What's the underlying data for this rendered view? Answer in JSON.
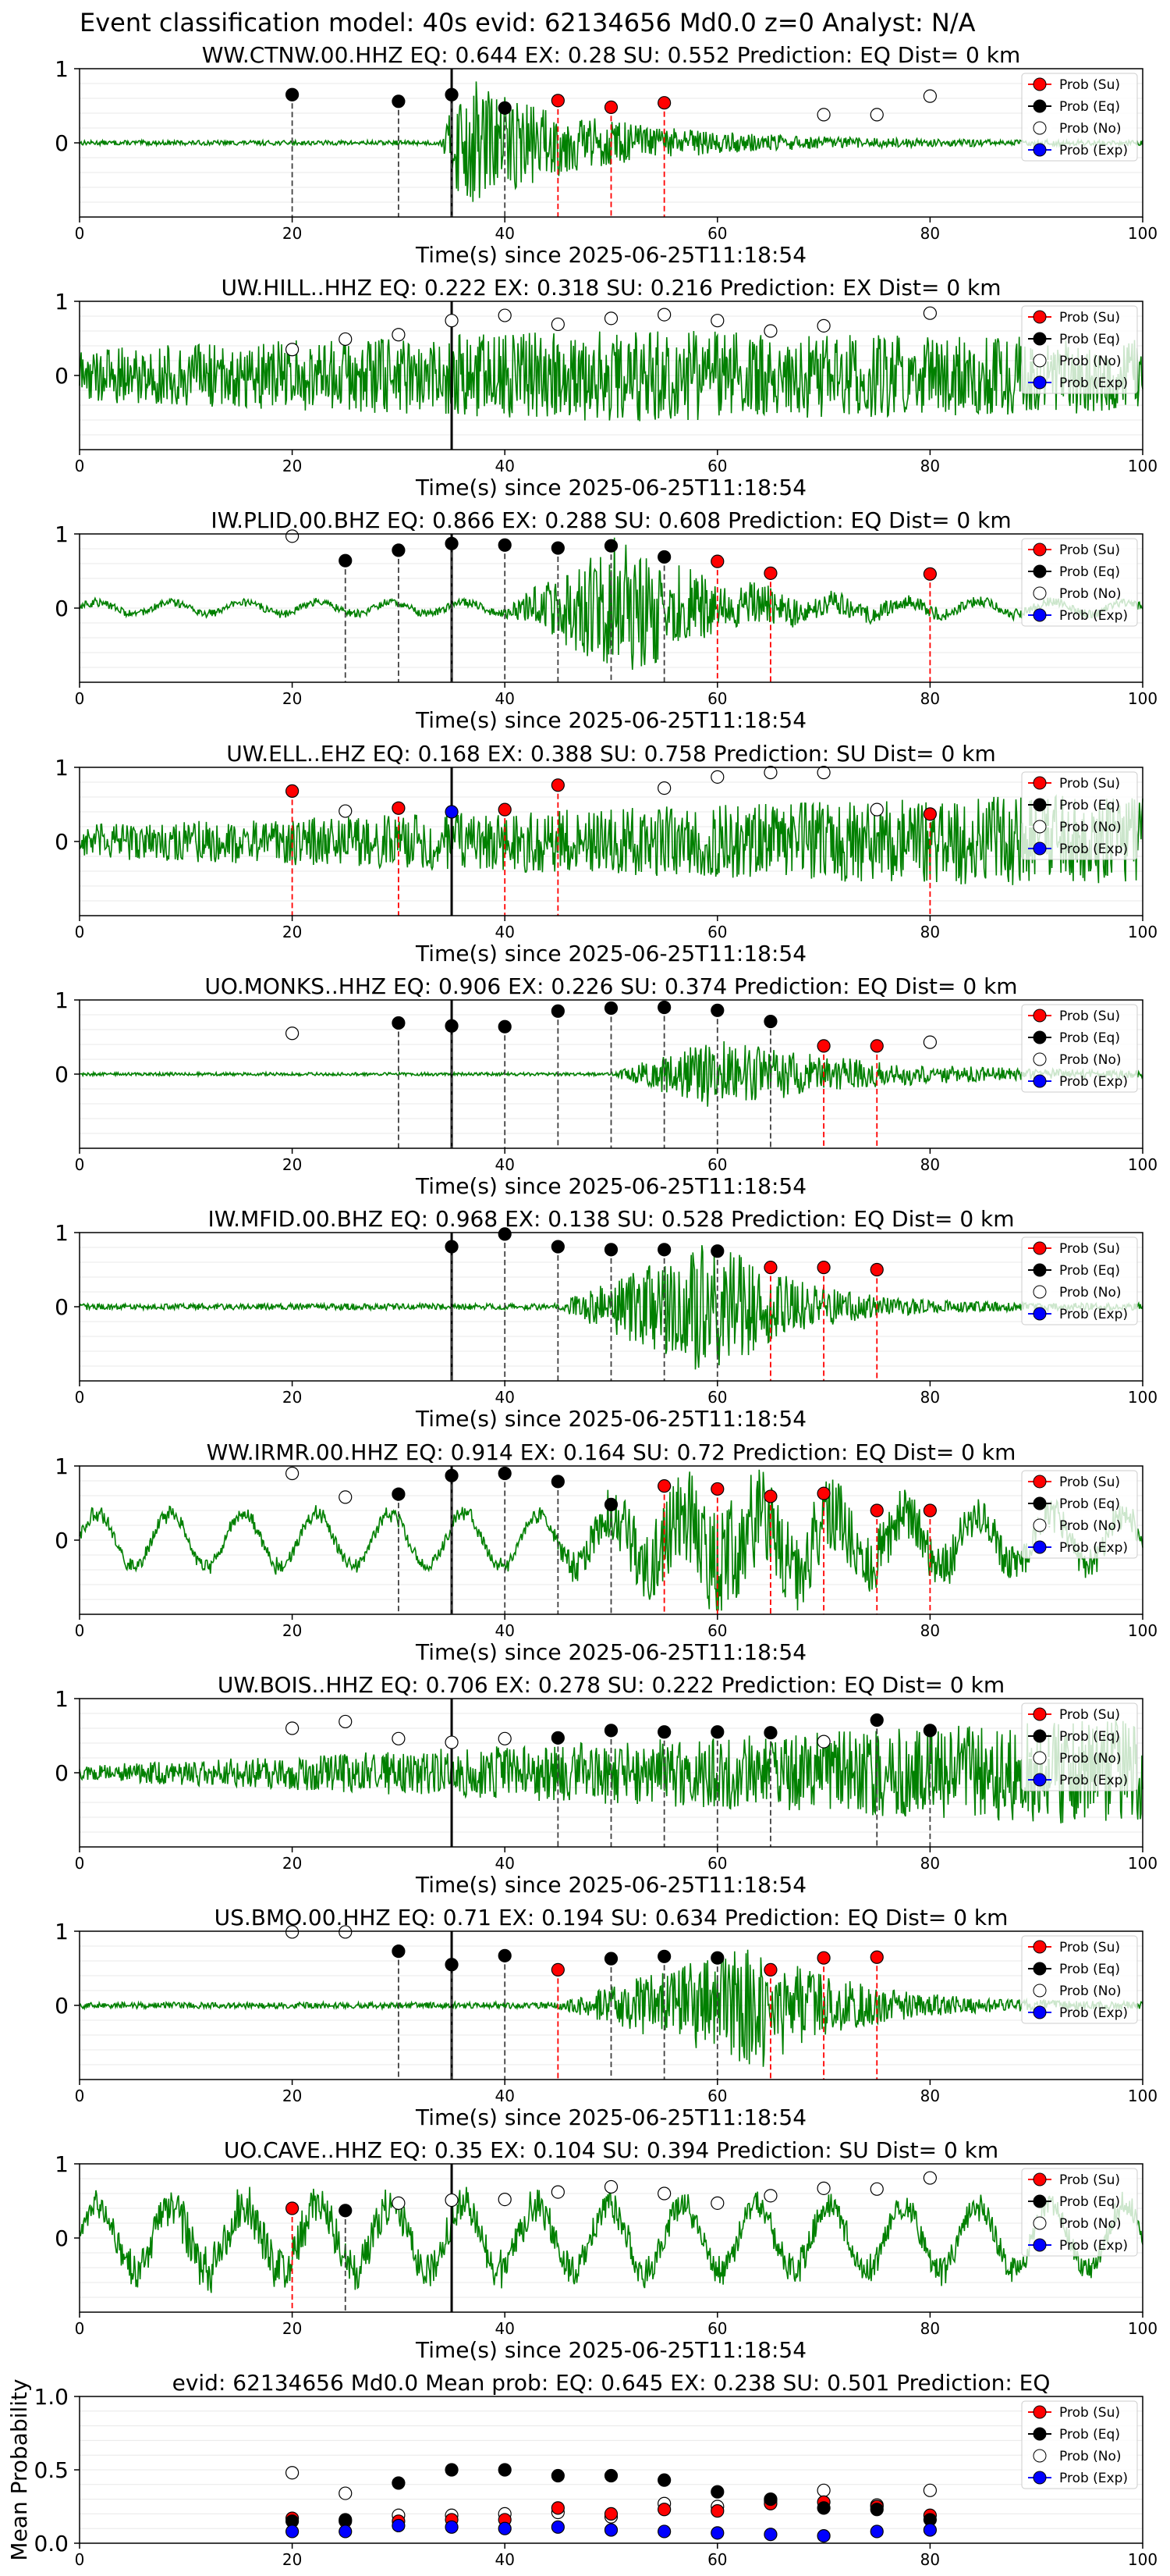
{
  "figure": {
    "suptitle": "Event classification model: 40s evid: 62134656 Md0.0 z=0 Analyst: N/A"
  },
  "legend_labels": [
    "Prob (Su)",
    "Prob (Eq)",
    "Prob (No)",
    "Prob (Exp)"
  ],
  "colors": {
    "waveform": "#008000",
    "su": "#ff0000",
    "eq": "#000000",
    "no": "#ffffff",
    "exp": "#0000ff",
    "eq_line": "#404040",
    "su_line": "#ff0000",
    "origin_line": "#000000"
  },
  "chart_data": [
    {
      "type": "line",
      "title": "WW.CTNW.00.HHZ   EQ: 0.644  EX: 0.28  SU: 0.552   Prediction: EQ    Dist= 0 km",
      "xlabel": "Time(s) since 2025-06-25T11:18:54",
      "xlim": [
        0,
        100
      ],
      "ylim": [
        -1,
        1
      ],
      "xticks": [
        0,
        20,
        40,
        60,
        80,
        100
      ],
      "yticks": [
        0,
        1
      ],
      "grid": "horizontal",
      "legend_position": "top-right",
      "origin_time": 35,
      "waveform": {
        "onset": 34,
        "peak": 36,
        "decay": 12,
        "noise": 0.03,
        "peak_amp": 0.85,
        "period": 0.4
      },
      "points": [
        {
          "t": 20,
          "label": "Eq",
          "y": 0.65
        },
        {
          "t": 30,
          "label": "Eq",
          "y": 0.56
        },
        {
          "t": 35,
          "label": "Eq",
          "y": 0.65
        },
        {
          "t": 40,
          "label": "Eq",
          "y": 0.47
        },
        {
          "t": 45,
          "label": "Su",
          "y": 0.57
        },
        {
          "t": 50,
          "label": "Su",
          "y": 0.48
        },
        {
          "t": 55,
          "label": "Su",
          "y": 0.54
        },
        {
          "t": 70,
          "label": "No",
          "y": 0.38
        },
        {
          "t": 75,
          "label": "No",
          "y": 0.38
        },
        {
          "t": 80,
          "label": "No",
          "y": 0.63
        }
      ]
    },
    {
      "type": "line",
      "title": "UW.HILL..HHZ   EQ: 0.222  EX: 0.318  SU: 0.216   Prediction: EX    Dist= 0 km",
      "xlabel": "Time(s) since 2025-06-25T11:18:54",
      "xlim": [
        0,
        100
      ],
      "ylim": [
        -1,
        1
      ],
      "xticks": [
        0,
        20,
        40,
        60,
        80,
        100
      ],
      "yticks": [
        0,
        1
      ],
      "grid": "horizontal",
      "legend_position": "top-right",
      "origin_time": 35,
      "waveform": {
        "onset": 0,
        "peak": 50,
        "decay": 80,
        "noise": 0.35,
        "peak_amp": 0.25,
        "period": 0.5
      },
      "points": [
        {
          "t": 20,
          "label": "No",
          "y": 0.35
        },
        {
          "t": 25,
          "label": "No",
          "y": 0.49
        },
        {
          "t": 30,
          "label": "No",
          "y": 0.55
        },
        {
          "t": 35,
          "label": "No",
          "y": 0.74
        },
        {
          "t": 40,
          "label": "No",
          "y": 0.81
        },
        {
          "t": 45,
          "label": "No",
          "y": 0.69
        },
        {
          "t": 50,
          "label": "No",
          "y": 0.77
        },
        {
          "t": 55,
          "label": "No",
          "y": 0.82
        },
        {
          "t": 60,
          "label": "No",
          "y": 0.74
        },
        {
          "t": 65,
          "label": "No",
          "y": 0.6
        },
        {
          "t": 70,
          "label": "No",
          "y": 0.67
        },
        {
          "t": 80,
          "label": "No",
          "y": 0.84
        }
      ]
    },
    {
      "type": "line",
      "title": "IW.PLID.00.BHZ   EQ: 0.866  EX: 0.288  SU: 0.608   Prediction: EQ    Dist= 0 km",
      "xlabel": "Time(s) since 2025-06-25T11:18:54",
      "xlim": [
        0,
        100
      ],
      "ylim": [
        -1,
        1
      ],
      "xticks": [
        0,
        20,
        40,
        60,
        80,
        100
      ],
      "yticks": [
        0,
        1
      ],
      "grid": "horizontal",
      "legend_position": "top-right",
      "origin_time": 35,
      "waveform": {
        "onset": 40,
        "peak": 51,
        "decay": 9,
        "noise": 0.05,
        "peak_amp": 0.85,
        "period": 0.5,
        "swell": 0.1
      },
      "points": [
        {
          "t": 20,
          "label": "No",
          "y": 0.97
        },
        {
          "t": 25,
          "label": "Eq",
          "y": 0.64
        },
        {
          "t": 30,
          "label": "Eq",
          "y": 0.78
        },
        {
          "t": 35,
          "label": "Eq",
          "y": 0.87
        },
        {
          "t": 40,
          "label": "Eq",
          "y": 0.85
        },
        {
          "t": 45,
          "label": "Eq",
          "y": 0.81
        },
        {
          "t": 50,
          "label": "Eq",
          "y": 0.84
        },
        {
          "t": 55,
          "label": "Eq",
          "y": 0.69
        },
        {
          "t": 60,
          "label": "Su",
          "y": 0.63
        },
        {
          "t": 65,
          "label": "Su",
          "y": 0.47
        },
        {
          "t": 80,
          "label": "Su",
          "y": 0.46
        }
      ]
    },
    {
      "type": "line",
      "title": "UW.ELL..EHZ   EQ: 0.168  EX: 0.388  SU: 0.758   Prediction: SU    Dist= 0 km",
      "xlabel": "Time(s) since 2025-06-25T11:18:54",
      "xlim": [
        0,
        100
      ],
      "ylim": [
        -1,
        1
      ],
      "xticks": [
        0,
        20,
        40,
        60,
        80,
        100
      ],
      "yticks": [
        0,
        1
      ],
      "grid": "horizontal",
      "legend_position": "top-right",
      "origin_time": 35,
      "waveform": {
        "onset": 0,
        "peak": 96,
        "decay": 30,
        "noise": 0.22,
        "peak_amp": 0.4,
        "period": 0.4
      },
      "points": [
        {
          "t": 20,
          "label": "Su",
          "y": 0.68
        },
        {
          "t": 25,
          "label": "No",
          "y": 0.41
        },
        {
          "t": 30,
          "label": "Su",
          "y": 0.45
        },
        {
          "t": 35,
          "label": "Exp",
          "y": 0.4
        },
        {
          "t": 40,
          "label": "Su",
          "y": 0.43
        },
        {
          "t": 45,
          "label": "Su",
          "y": 0.76
        },
        {
          "t": 55,
          "label": "No",
          "y": 0.72
        },
        {
          "t": 60,
          "label": "No",
          "y": 0.87
        },
        {
          "t": 65,
          "label": "No",
          "y": 0.93
        },
        {
          "t": 70,
          "label": "No",
          "y": 0.93
        },
        {
          "t": 75,
          "label": "No",
          "y": 0.43
        },
        {
          "t": 80,
          "label": "Su",
          "y": 0.37
        }
      ]
    },
    {
      "type": "line",
      "title": "UO.MONKS..HHZ   EQ: 0.906  EX: 0.226  SU: 0.374   Prediction: EQ    Dist= 0 km",
      "xlabel": "Time(s) since 2025-06-25T11:18:54",
      "xlim": [
        0,
        100
      ],
      "ylim": [
        -1,
        1
      ],
      "xticks": [
        0,
        20,
        40,
        60,
        80,
        100
      ],
      "yticks": [
        0,
        1
      ],
      "grid": "horizontal",
      "legend_position": "top-right",
      "origin_time": 35,
      "waveform": {
        "onset": 50,
        "peak": 60,
        "decay": 14,
        "noise": 0.02,
        "peak_amp": 0.45,
        "period": 0.4
      },
      "points": [
        {
          "t": 20,
          "label": "No",
          "y": 0.55
        },
        {
          "t": 30,
          "label": "Eq",
          "y": 0.69
        },
        {
          "t": 35,
          "label": "Eq",
          "y": 0.65
        },
        {
          "t": 40,
          "label": "Eq",
          "y": 0.64
        },
        {
          "t": 45,
          "label": "Eq",
          "y": 0.85
        },
        {
          "t": 50,
          "label": "Eq",
          "y": 0.89
        },
        {
          "t": 55,
          "label": "Eq",
          "y": 0.9
        },
        {
          "t": 60,
          "label": "Eq",
          "y": 0.86
        },
        {
          "t": 65,
          "label": "Eq",
          "y": 0.71
        },
        {
          "t": 70,
          "label": "Su",
          "y": 0.38
        },
        {
          "t": 75,
          "label": "Su",
          "y": 0.38
        },
        {
          "t": 80,
          "label": "No",
          "y": 0.43
        }
      ]
    },
    {
      "type": "line",
      "title": "IW.MFID.00.BHZ   EQ: 0.968  EX: 0.138  SU: 0.528   Prediction: EQ    Dist= 0 km",
      "xlabel": "Time(s) since 2025-06-25T11:18:54",
      "xlim": [
        0,
        100
      ],
      "ylim": [
        -1,
        1
      ],
      "xticks": [
        0,
        20,
        40,
        60,
        80,
        100
      ],
      "yticks": [
        0,
        1
      ],
      "grid": "horizontal",
      "legend_position": "top-right",
      "origin_time": 35,
      "waveform": {
        "onset": 45,
        "peak": 60,
        "decay": 7,
        "noise": 0.04,
        "peak_amp": 0.9,
        "period": 0.4
      },
      "points": [
        {
          "t": 35,
          "label": "Eq",
          "y": 0.81
        },
        {
          "t": 40,
          "label": "Eq",
          "y": 0.98
        },
        {
          "t": 45,
          "label": "Eq",
          "y": 0.81
        },
        {
          "t": 50,
          "label": "Eq",
          "y": 0.77
        },
        {
          "t": 55,
          "label": "Eq",
          "y": 0.77
        },
        {
          "t": 60,
          "label": "Eq",
          "y": 0.75
        },
        {
          "t": 65,
          "label": "Su",
          "y": 0.53
        },
        {
          "t": 70,
          "label": "Su",
          "y": 0.53
        },
        {
          "t": 75,
          "label": "Su",
          "y": 0.5
        }
      ]
    },
    {
      "type": "line",
      "title": "WW.IRMR.00.HHZ   EQ: 0.914  EX: 0.164  SU: 0.72   Prediction: EQ    Dist= 0 km",
      "xlabel": "Time(s) since 2025-06-25T11:18:54",
      "xlim": [
        0,
        100
      ],
      "ylim": [
        -1,
        1
      ],
      "xticks": [
        0,
        20,
        40,
        60,
        80,
        100
      ],
      "yticks": [
        0,
        1
      ],
      "grid": "horizontal",
      "legend_position": "top-right",
      "origin_time": 35,
      "waveform": {
        "onset": 44,
        "peak": 60,
        "decay": 18,
        "noise": 0.08,
        "peak_amp": 0.7,
        "period": 0.4,
        "swell": 0.45
      },
      "points": [
        {
          "t": 20,
          "label": "No",
          "y": 0.9
        },
        {
          "t": 25,
          "label": "No",
          "y": 0.58
        },
        {
          "t": 30,
          "label": "Eq",
          "y": 0.62
        },
        {
          "t": 35,
          "label": "Eq",
          "y": 0.87
        },
        {
          "t": 40,
          "label": "Eq",
          "y": 0.9
        },
        {
          "t": 45,
          "label": "Eq",
          "y": 0.79
        },
        {
          "t": 50,
          "label": "Eq",
          "y": 0.48
        },
        {
          "t": 55,
          "label": "Su",
          "y": 0.73
        },
        {
          "t": 60,
          "label": "Su",
          "y": 0.69
        },
        {
          "t": 65,
          "label": "Su",
          "y": 0.59
        },
        {
          "t": 70,
          "label": "Su",
          "y": 0.63
        },
        {
          "t": 75,
          "label": "Su",
          "y": 0.4
        },
        {
          "t": 80,
          "label": "Su",
          "y": 0.4
        }
      ]
    },
    {
      "type": "line",
      "title": "UW.BOIS..HHZ   EQ: 0.706  EX: 0.278  SU: 0.222   Prediction: EQ    Dist= 0 km",
      "xlabel": "Time(s) since 2025-06-25T11:18:54",
      "xlim": [
        0,
        100
      ],
      "ylim": [
        -1,
        1
      ],
      "xticks": [
        0,
        20,
        40,
        60,
        80,
        100
      ],
      "yticks": [
        0,
        1
      ],
      "grid": "horizontal",
      "legend_position": "top-right",
      "origin_time": 35,
      "waveform": {
        "onset": 0,
        "peak": 98,
        "decay": 12,
        "noise": 0.1,
        "peak_amp": 0.6,
        "period": 0.5
      },
      "points": [
        {
          "t": 20,
          "label": "No",
          "y": 0.6
        },
        {
          "t": 25,
          "label": "No",
          "y": 0.69
        },
        {
          "t": 30,
          "label": "No",
          "y": 0.46
        },
        {
          "t": 35,
          "label": "No",
          "y": 0.41
        },
        {
          "t": 40,
          "label": "No",
          "y": 0.46
        },
        {
          "t": 45,
          "label": "Eq",
          "y": 0.47
        },
        {
          "t": 50,
          "label": "Eq",
          "y": 0.57
        },
        {
          "t": 55,
          "label": "Eq",
          "y": 0.55
        },
        {
          "t": 60,
          "label": "Eq",
          "y": 0.55
        },
        {
          "t": 65,
          "label": "Eq",
          "y": 0.54
        },
        {
          "t": 70,
          "label": "No",
          "y": 0.42
        },
        {
          "t": 75,
          "label": "Eq",
          "y": 0.71
        },
        {
          "t": 80,
          "label": "Eq",
          "y": 0.57
        }
      ]
    },
    {
      "type": "line",
      "title": "US.BMO.00.HHZ   EQ: 0.71  EX: 0.194  SU: 0.634   Prediction: EQ    Dist= 0 km",
      "xlabel": "Time(s) since 2025-06-25T11:18:54",
      "xlim": [
        0,
        100
      ],
      "ylim": [
        -1,
        1
      ],
      "xticks": [
        0,
        20,
        40,
        60,
        80,
        100
      ],
      "yticks": [
        0,
        1
      ],
      "grid": "horizontal",
      "legend_position": "top-right",
      "origin_time": 35,
      "waveform": {
        "onset": 45,
        "peak": 64,
        "decay": 8,
        "noise": 0.04,
        "peak_amp": 0.8,
        "period": 0.4
      },
      "points": [
        {
          "t": 20,
          "label": "No",
          "y": 0.99
        },
        {
          "t": 25,
          "label": "No",
          "y": 0.99
        },
        {
          "t": 30,
          "label": "Eq",
          "y": 0.73
        },
        {
          "t": 35,
          "label": "Eq",
          "y": 0.55
        },
        {
          "t": 40,
          "label": "Eq",
          "y": 0.67
        },
        {
          "t": 45,
          "label": "Su",
          "y": 0.48
        },
        {
          "t": 50,
          "label": "Eq",
          "y": 0.63
        },
        {
          "t": 55,
          "label": "Eq",
          "y": 0.66
        },
        {
          "t": 60,
          "label": "Eq",
          "y": 0.64
        },
        {
          "t": 65,
          "label": "Su",
          "y": 0.48
        },
        {
          "t": 70,
          "label": "Su",
          "y": 0.64
        },
        {
          "t": 75,
          "label": "Su",
          "y": 0.65
        }
      ]
    },
    {
      "type": "line",
      "title": "UO.CAVE..HHZ   EQ: 0.35  EX: 0.104  SU: 0.394   Prediction: SU    Dist= 0 km",
      "xlabel": "Time(s) since 2025-06-25T11:18:54",
      "xlim": [
        0,
        100
      ],
      "ylim": [
        -1,
        1
      ],
      "xticks": [
        0,
        20,
        40,
        60,
        80,
        100
      ],
      "yticks": [
        0,
        1
      ],
      "grid": "horizontal",
      "legend_position": "top-right",
      "origin_time": 35,
      "waveform": {
        "onset": 0,
        "peak": 10,
        "decay": 60,
        "noise": 0.1,
        "peak_amp": 0.2,
        "period": 0.5,
        "swell": 0.55
      },
      "points": [
        {
          "t": 20,
          "label": "Su",
          "y": 0.4
        },
        {
          "t": 25,
          "label": "Eq",
          "y": 0.37
        },
        {
          "t": 30,
          "label": "No",
          "y": 0.47
        },
        {
          "t": 35,
          "label": "No",
          "y": 0.51
        },
        {
          "t": 40,
          "label": "No",
          "y": 0.52
        },
        {
          "t": 45,
          "label": "No",
          "y": 0.62
        },
        {
          "t": 50,
          "label": "No",
          "y": 0.69
        },
        {
          "t": 55,
          "label": "No",
          "y": 0.6
        },
        {
          "t": 60,
          "label": "No",
          "y": 0.47
        },
        {
          "t": 65,
          "label": "No",
          "y": 0.57
        },
        {
          "t": 70,
          "label": "No",
          "y": 0.67
        },
        {
          "t": 75,
          "label": "No",
          "y": 0.66
        },
        {
          "t": 80,
          "label": "No",
          "y": 0.81
        }
      ]
    },
    {
      "type": "scatter",
      "title": "evid: 62134656   Md0.0   Mean prob:   EQ: 0.645  EX: 0.238  SU: 0.501   Prediction: EQ",
      "xlabel": "",
      "ylabel": "Mean Probability",
      "xlim": [
        0,
        100
      ],
      "ylim": [
        0,
        1
      ],
      "xticks": [
        0,
        20,
        40,
        60,
        80,
        100
      ],
      "yticks": [
        0.0,
        0.5,
        1.0
      ],
      "grid": "horizontal",
      "legend_position": "top-right",
      "x": [
        20,
        25,
        30,
        35,
        40,
        45,
        50,
        55,
        60,
        65,
        70,
        75,
        80
      ],
      "series": [
        {
          "name": "Prob (Su)",
          "label": "Su",
          "values": [
            0.17,
            0.15,
            0.15,
            0.16,
            0.16,
            0.24,
            0.2,
            0.23,
            0.22,
            0.27,
            0.28,
            0.25,
            0.19
          ]
        },
        {
          "name": "Prob (Eq)",
          "label": "Eq",
          "values": [
            0.15,
            0.16,
            0.41,
            0.5,
            0.5,
            0.46,
            0.46,
            0.43,
            0.35,
            0.3,
            0.24,
            0.23,
            0.16
          ]
        },
        {
          "name": "Prob (No)",
          "label": "No",
          "values": [
            0.48,
            0.34,
            0.19,
            0.19,
            0.2,
            0.21,
            0.18,
            0.27,
            0.25,
            0.29,
            0.36,
            0.26,
            0.36
          ]
        },
        {
          "name": "Prob (Exp)",
          "label": "Exp",
          "values": [
            0.08,
            0.08,
            0.12,
            0.11,
            0.1,
            0.11,
            0.09,
            0.08,
            0.07,
            0.06,
            0.05,
            0.08,
            0.09
          ]
        }
      ]
    }
  ]
}
